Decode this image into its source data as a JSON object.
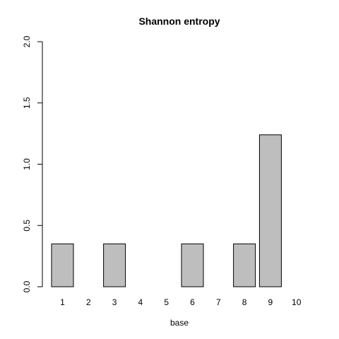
{
  "chart_data": {
    "type": "bar",
    "title": "Shannon entropy",
    "xlabel": "base",
    "ylabel": "",
    "categories": [
      "1",
      "2",
      "3",
      "4",
      "5",
      "6",
      "7",
      "8",
      "9",
      "10"
    ],
    "values": [
      0.35,
      0,
      0.35,
      0,
      0,
      0.35,
      0,
      0.35,
      1.24,
      0
    ],
    "ylim": [
      0,
      2.0
    ],
    "yticks": [
      "0.0",
      "0.5",
      "1.0",
      "1.5",
      "2.0"
    ],
    "grid": false,
    "bar_color": "#bebebe"
  }
}
